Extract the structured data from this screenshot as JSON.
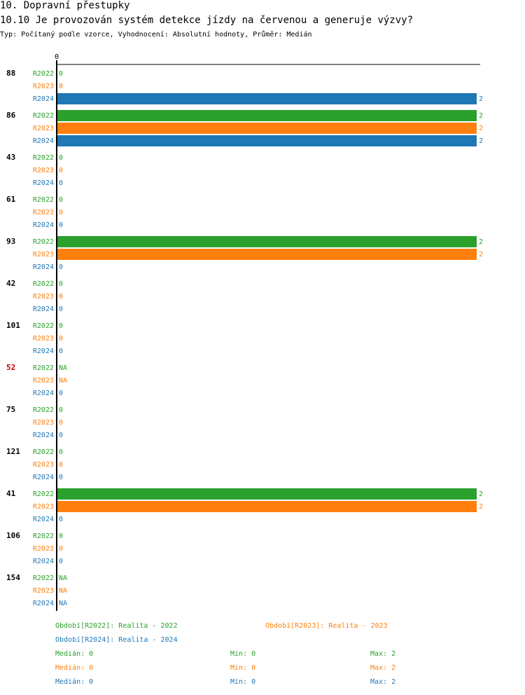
{
  "header": {
    "title": "10. Dopravní přestupky",
    "question": "10.10 Je provozován systém detekce jízdy na červenou a generuje výzvy?",
    "subtitle": "Typ: Počítaný podle vzorce, Vyhodnocení: Absolutní hodnoty, Průměr: Medián"
  },
  "colors": {
    "R2022": "#2ca02c",
    "R2023": "#ff7f0e",
    "R2024": "#1f77b4",
    "highlight": "#cc0000"
  },
  "chart_data": {
    "type": "bar",
    "orientation": "horizontal",
    "axis_zero_label": "0",
    "xlim": [
      0,
      2
    ],
    "series_names": [
      "R2022",
      "R2023",
      "R2024"
    ],
    "categories": [
      {
        "label": "88",
        "highlight": false,
        "values": [
          0,
          0,
          2
        ]
      },
      {
        "label": "86",
        "highlight": false,
        "values": [
          2,
          2,
          2
        ]
      },
      {
        "label": "43",
        "highlight": false,
        "values": [
          0,
          0,
          0
        ]
      },
      {
        "label": "61",
        "highlight": false,
        "values": [
          0,
          0,
          0
        ]
      },
      {
        "label": "93",
        "highlight": false,
        "values": [
          2,
          2,
          0
        ]
      },
      {
        "label": "42",
        "highlight": false,
        "values": [
          0,
          0,
          0
        ]
      },
      {
        "label": "101",
        "highlight": false,
        "values": [
          0,
          0,
          0
        ]
      },
      {
        "label": "52",
        "highlight": true,
        "values": [
          "NA",
          "NA",
          0
        ]
      },
      {
        "label": "75",
        "highlight": false,
        "values": [
          0,
          0,
          0
        ]
      },
      {
        "label": "121",
        "highlight": false,
        "values": [
          0,
          0,
          0
        ]
      },
      {
        "label": "41",
        "highlight": false,
        "values": [
          2,
          2,
          0
        ]
      },
      {
        "label": "106",
        "highlight": false,
        "values": [
          0,
          0,
          0
        ]
      },
      {
        "label": "154",
        "highlight": false,
        "values": [
          "NA",
          "NA",
          "NA"
        ]
      }
    ]
  },
  "legend": {
    "period_2022": "Období[R2022]: Realita - 2022",
    "period_2023": "Období[R2023]: Realita - 2023",
    "period_2024": "Období[R2024]: Realita - 2024",
    "stats": [
      {
        "median": "Medián: 0",
        "min": "Min: 0",
        "max": "Max: 2"
      },
      {
        "median": "Medián: 0",
        "min": "Min: 0",
        "max": "Max: 2"
      },
      {
        "median": "Medián: 0",
        "min": "Min: 0",
        "max": "Max: 2"
      }
    ]
  }
}
